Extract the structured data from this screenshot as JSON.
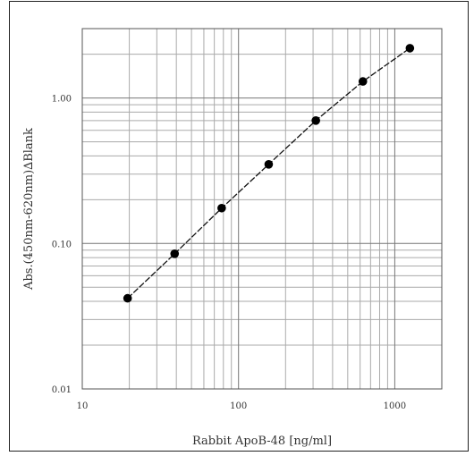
{
  "chart_data": {
    "type": "scatter",
    "title": "",
    "xlabel": "Rabbit ApoB-48 [ng/ml]",
    "ylabel": "Abs.(450nm-620nm)∆Blank",
    "xscale": "log",
    "yscale": "log",
    "xlim": [
      10,
      2000
    ],
    "ylim": [
      0.01,
      3
    ],
    "x_tick_labels": [
      "10",
      "100",
      "1000"
    ],
    "y_tick_labels": [
      "0.01",
      "0.10",
      "1.00"
    ],
    "grid": true,
    "series": [
      {
        "x": [
          19.5,
          39,
          78,
          156,
          312.5,
          625,
          1250
        ],
        "y": [
          0.042,
          0.085,
          0.175,
          0.35,
          0.7,
          1.3,
          2.2
        ],
        "marker": "circle",
        "line": "dashed-fit",
        "color": "#000000"
      }
    ]
  }
}
